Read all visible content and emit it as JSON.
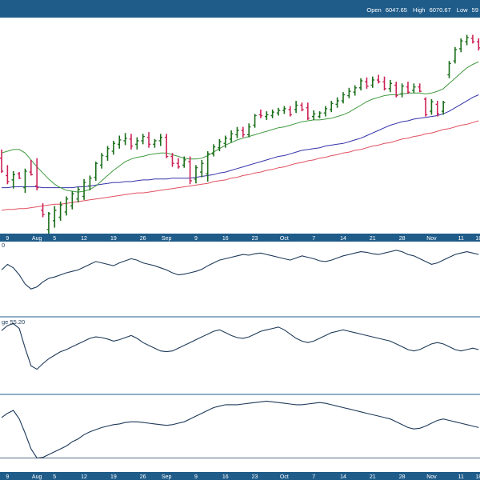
{
  "header": {
    "open_label": "Open",
    "open_value": "6047.65",
    "high_label": "High",
    "high_value": "6070.67",
    "low_label": "Low",
    "low_value": "59"
  },
  "colors": {
    "frame": "#1f5c8a",
    "bar_up": "#1a6e1a",
    "bar_down": "#cc2255",
    "ma_short": "#3f9a3f",
    "ma_mid": "#3333aa",
    "ma_long": "#e05060",
    "indicator": "#1e3a5a",
    "background": "#ffffff"
  },
  "panel_labels": {
    "panel2": "0",
    "panel3": "ge 55.20"
  },
  "chart_data": [
    {
      "type": "ohlc",
      "title": "",
      "x_tick_labels": [
        "9",
        "Aug",
        "5",
        "12",
        "19",
        "26",
        "Sep",
        "9",
        "16",
        "23",
        "Oct",
        "7",
        "14",
        "21",
        "28",
        "Nov",
        "11",
        "18"
      ],
      "bar_count": 82,
      "ylim": [
        145,
        390
      ],
      "bars": [
        {
          "o": 230,
          "h": 240,
          "l": 213,
          "c": 215
        },
        {
          "o": 210,
          "h": 222,
          "l": 200,
          "c": 203
        },
        {
          "o": 205,
          "h": 215,
          "l": 195,
          "c": 211
        },
        {
          "o": 212,
          "h": 214,
          "l": 206,
          "c": 207
        },
        {
          "o": 196,
          "h": 218,
          "l": 190,
          "c": 215
        },
        {
          "o": 214,
          "h": 228,
          "l": 210,
          "c": 211
        },
        {
          "o": 198,
          "h": 230,
          "l": 193,
          "c": 196
        },
        {
          "o": 170,
          "h": 178,
          "l": 162,
          "c": 165
        },
        {
          "o": 148,
          "h": 168,
          "l": 140,
          "c": 166
        },
        {
          "o": 158,
          "h": 175,
          "l": 150,
          "c": 170
        },
        {
          "o": 162,
          "h": 180,
          "l": 158,
          "c": 176
        },
        {
          "o": 168,
          "h": 186,
          "l": 164,
          "c": 183
        },
        {
          "o": 175,
          "h": 192,
          "l": 171,
          "c": 189
        },
        {
          "o": 183,
          "h": 197,
          "l": 179,
          "c": 194
        },
        {
          "o": 186,
          "h": 206,
          "l": 182,
          "c": 202
        },
        {
          "o": 198,
          "h": 210,
          "l": 193,
          "c": 207
        },
        {
          "o": 208,
          "h": 226,
          "l": 204,
          "c": 224
        },
        {
          "o": 222,
          "h": 236,
          "l": 218,
          "c": 233
        },
        {
          "o": 232,
          "h": 244,
          "l": 227,
          "c": 241
        },
        {
          "o": 238,
          "h": 250,
          "l": 234,
          "c": 247
        },
        {
          "o": 246,
          "h": 256,
          "l": 241,
          "c": 251
        },
        {
          "o": 250,
          "h": 259,
          "l": 245,
          "c": 253
        },
        {
          "o": 252,
          "h": 258,
          "l": 240,
          "c": 244
        },
        {
          "o": 246,
          "h": 254,
          "l": 240,
          "c": 250
        },
        {
          "o": 250,
          "h": 258,
          "l": 246,
          "c": 255
        },
        {
          "o": 254,
          "h": 260,
          "l": 242,
          "c": 246
        },
        {
          "o": 246,
          "h": 252,
          "l": 242,
          "c": 250
        },
        {
          "o": 250,
          "h": 258,
          "l": 244,
          "c": 254
        },
        {
          "o": 254,
          "h": 258,
          "l": 230,
          "c": 232
        },
        {
          "o": 232,
          "h": 236,
          "l": 220,
          "c": 224
        },
        {
          "o": 224,
          "h": 230,
          "l": 218,
          "c": 220
        },
        {
          "o": 222,
          "h": 232,
          "l": 219,
          "c": 228
        },
        {
          "o": 226,
          "h": 232,
          "l": 200,
          "c": 204
        },
        {
          "o": 206,
          "h": 222,
          "l": 201,
          "c": 219
        },
        {
          "o": 214,
          "h": 228,
          "l": 208,
          "c": 224
        },
        {
          "o": 212,
          "h": 238,
          "l": 203,
          "c": 235
        },
        {
          "o": 235,
          "h": 246,
          "l": 232,
          "c": 243
        },
        {
          "o": 242,
          "h": 252,
          "l": 238,
          "c": 249
        },
        {
          "o": 247,
          "h": 256,
          "l": 242,
          "c": 253
        },
        {
          "o": 252,
          "h": 262,
          "l": 248,
          "c": 258
        },
        {
          "o": 257,
          "h": 266,
          "l": 253,
          "c": 262
        },
        {
          "o": 262,
          "h": 266,
          "l": 254,
          "c": 257
        },
        {
          "o": 257,
          "h": 270,
          "l": 254,
          "c": 266
        },
        {
          "o": 268,
          "h": 281,
          "l": 265,
          "c": 279
        },
        {
          "o": 280,
          "h": 286,
          "l": 276,
          "c": 279
        },
        {
          "o": 278,
          "h": 284,
          "l": 274,
          "c": 280
        },
        {
          "o": 279,
          "h": 286,
          "l": 276,
          "c": 283
        },
        {
          "o": 282,
          "h": 288,
          "l": 279,
          "c": 285
        },
        {
          "o": 285,
          "h": 290,
          "l": 281,
          "c": 287
        },
        {
          "o": 286,
          "h": 290,
          "l": 278,
          "c": 280
        },
        {
          "o": 286,
          "h": 296,
          "l": 282,
          "c": 291
        },
        {
          "o": 291,
          "h": 294,
          "l": 284,
          "c": 286
        },
        {
          "o": 288,
          "h": 294,
          "l": 274,
          "c": 276
        },
        {
          "o": 278,
          "h": 285,
          "l": 274,
          "c": 281
        },
        {
          "o": 278,
          "h": 284,
          "l": 276,
          "c": 282
        },
        {
          "o": 282,
          "h": 290,
          "l": 278,
          "c": 287
        },
        {
          "o": 286,
          "h": 296,
          "l": 283,
          "c": 293
        },
        {
          "o": 292,
          "h": 300,
          "l": 288,
          "c": 296
        },
        {
          "o": 296,
          "h": 306,
          "l": 293,
          "c": 303
        },
        {
          "o": 302,
          "h": 311,
          "l": 299,
          "c": 307
        },
        {
          "o": 306,
          "h": 314,
          "l": 302,
          "c": 311
        },
        {
          "o": 311,
          "h": 322,
          "l": 308,
          "c": 319
        },
        {
          "o": 318,
          "h": 323,
          "l": 310,
          "c": 313
        },
        {
          "o": 314,
          "h": 324,
          "l": 311,
          "c": 320
        },
        {
          "o": 320,
          "h": 326,
          "l": 316,
          "c": 318
        },
        {
          "o": 318,
          "h": 324,
          "l": 308,
          "c": 310
        },
        {
          "o": 310,
          "h": 320,
          "l": 306,
          "c": 316
        },
        {
          "o": 314,
          "h": 318,
          "l": 300,
          "c": 302
        },
        {
          "o": 304,
          "h": 316,
          "l": 300,
          "c": 313
        },
        {
          "o": 312,
          "h": 318,
          "l": 304,
          "c": 306
        },
        {
          "o": 308,
          "h": 316,
          "l": 305,
          "c": 312
        },
        {
          "o": 312,
          "h": 316,
          "l": 306,
          "c": 307
        },
        {
          "o": 298,
          "h": 300,
          "l": 278,
          "c": 280
        },
        {
          "o": 284,
          "h": 298,
          "l": 280,
          "c": 295
        },
        {
          "o": 292,
          "h": 296,
          "l": 278,
          "c": 281
        },
        {
          "o": 284,
          "h": 296,
          "l": 280,
          "c": 294
        },
        {
          "o": 326,
          "h": 342,
          "l": 322,
          "c": 339
        },
        {
          "o": 342,
          "h": 358,
          "l": 339,
          "c": 355
        },
        {
          "o": 356,
          "h": 368,
          "l": 352,
          "c": 365
        },
        {
          "o": 364,
          "h": 372,
          "l": 360,
          "c": 369
        },
        {
          "o": 368,
          "h": 372,
          "l": 362,
          "c": 364
        },
        {
          "o": 364,
          "h": 368,
          "l": 354,
          "c": 357
        }
      ],
      "ma_short": [
        236,
        238,
        240,
        240,
        236,
        228,
        220,
        213,
        206,
        200,
        196,
        193,
        192,
        191,
        192,
        194,
        198,
        204,
        210,
        216,
        221,
        226,
        229,
        231,
        232,
        234,
        235,
        236,
        236,
        234,
        232,
        230,
        229,
        229,
        230,
        233,
        237,
        241,
        245,
        248,
        251,
        253,
        255,
        257,
        259,
        261,
        263,
        265,
        266,
        268,
        270,
        272,
        273,
        274,
        274,
        275,
        276,
        278,
        280,
        283,
        287,
        291,
        295,
        298,
        300,
        302,
        303,
        303,
        304,
        305,
        305,
        305,
        304,
        305,
        307,
        310,
        316,
        322,
        328,
        334,
        338,
        341
      ],
      "ma_mid": [
        196,
        196,
        197,
        197,
        197,
        197,
        197,
        196,
        196,
        196,
        196,
        196,
        196,
        197,
        197,
        198,
        199,
        200,
        201,
        202,
        202,
        203,
        203,
        204,
        205,
        205,
        206,
        206,
        206,
        207,
        207,
        207,
        207,
        208,
        209,
        210,
        211,
        213,
        214,
        216,
        218,
        220,
        222,
        224,
        226,
        228,
        230,
        232,
        233,
        235,
        237,
        239,
        240,
        241,
        242,
        244,
        245,
        246,
        247,
        249,
        251,
        253,
        256,
        259,
        262,
        265,
        268,
        270,
        272,
        273,
        275,
        276,
        277,
        278,
        279,
        281,
        284,
        288,
        292,
        296,
        300,
        303
      ],
      "ma_long": [
        170,
        171,
        171,
        172,
        172,
        173,
        174,
        175,
        176,
        177,
        177,
        178,
        179,
        180,
        181,
        182,
        183,
        184,
        185,
        186,
        187,
        188,
        189,
        190,
        190,
        191,
        192,
        193,
        194,
        195,
        196,
        197,
        198,
        199,
        200,
        201,
        203,
        204,
        205,
        207,
        208,
        210,
        211,
        213,
        214,
        216,
        217,
        219,
        220,
        222,
        224,
        225,
        227,
        228,
        230,
        231,
        233,
        234,
        236,
        237,
        239,
        240,
        242,
        244,
        245,
        247,
        248,
        250,
        252,
        253,
        255,
        256,
        258,
        259,
        261,
        263,
        264,
        266,
        268,
        269,
        271,
        273
      ]
    },
    {
      "type": "line",
      "title": "",
      "ylim": [
        0,
        100
      ],
      "values": [
        62,
        70,
        65,
        55,
        42,
        35,
        38,
        45,
        50,
        52,
        55,
        58,
        60,
        62,
        66,
        70,
        74,
        72,
        70,
        68,
        72,
        75,
        78,
        76,
        72,
        70,
        68,
        65,
        62,
        58,
        55,
        56,
        58,
        60,
        63,
        68,
        72,
        76,
        78,
        80,
        82,
        84,
        83,
        85,
        86,
        84,
        82,
        80,
        78,
        76,
        79,
        82,
        80,
        78,
        75,
        74,
        76,
        79,
        82,
        84,
        86,
        88,
        87,
        85,
        84,
        86,
        88,
        90,
        88,
        84,
        82,
        78,
        74,
        70,
        72,
        76,
        80,
        84,
        86,
        88,
        86,
        84
      ]
    },
    {
      "type": "line",
      "title": "",
      "ylim": [
        0,
        100
      ],
      "values": [
        85,
        92,
        95,
        88,
        60,
        35,
        30,
        38,
        45,
        50,
        55,
        58,
        62,
        66,
        70,
        74,
        76,
        75,
        73,
        70,
        72,
        75,
        78,
        74,
        68,
        64,
        60,
        56,
        55,
        56,
        60,
        64,
        68,
        72,
        76,
        80,
        84,
        86,
        82,
        78,
        75,
        74,
        76,
        80,
        84,
        86,
        88,
        90,
        86,
        80,
        74,
        70,
        68,
        70,
        74,
        78,
        82,
        84,
        86,
        84,
        82,
        80,
        78,
        76,
        74,
        72,
        70,
        66,
        62,
        58,
        56,
        58,
        62,
        66,
        68,
        66,
        62,
        58,
        56,
        58,
        60,
        58
      ]
    },
    {
      "type": "line",
      "title": "",
      "ylim": [
        0,
        100
      ],
      "values": [
        72,
        78,
        82,
        70,
        50,
        28,
        15,
        16,
        20,
        24,
        28,
        32,
        38,
        42,
        48,
        52,
        55,
        58,
        60,
        62,
        63,
        65,
        66,
        66,
        65,
        64,
        63,
        62,
        61,
        62,
        64,
        66,
        70,
        74,
        78,
        82,
        86,
        88,
        90,
        90,
        90,
        91,
        92,
        93,
        94,
        95,
        94,
        93,
        92,
        91,
        90,
        90,
        91,
        92,
        93,
        92,
        90,
        88,
        86,
        84,
        82,
        80,
        78,
        76,
        74,
        72,
        70,
        66,
        62,
        58,
        56,
        57,
        60,
        64,
        68,
        70,
        68,
        66,
        64,
        62,
        60,
        58
      ],
      "reference_line": 15
    }
  ]
}
